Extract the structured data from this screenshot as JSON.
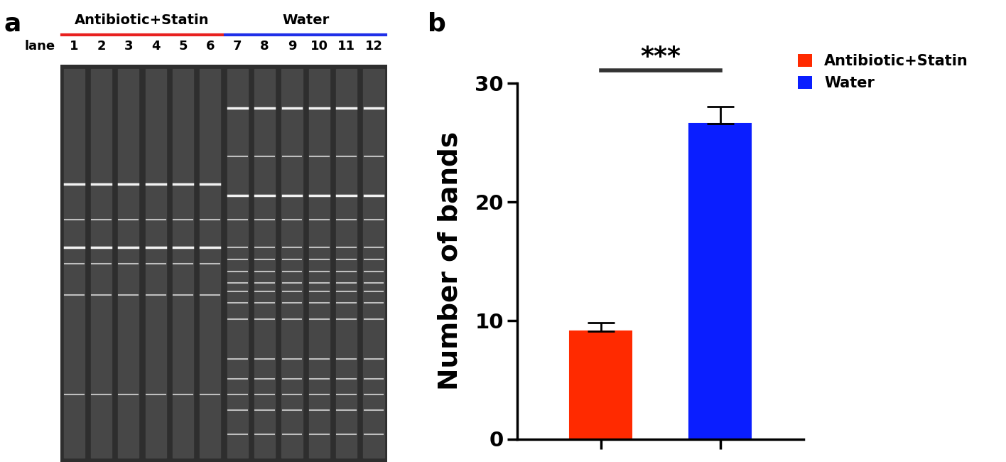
{
  "panel_labels": [
    "a",
    "b"
  ],
  "gel": {
    "axis_label": "lane",
    "groups": [
      {
        "name": "Antibiotic+Statin",
        "color": "#e8211f",
        "lanes": [
          "1",
          "2",
          "3",
          "4",
          "5",
          "6"
        ]
      },
      {
        "name": "Water",
        "color": "#1f2fe8",
        "lanes": [
          "7",
          "8",
          "9",
          "10",
          "11",
          "12"
        ]
      }
    ]
  },
  "chart_data": {
    "type": "bar",
    "categories": [
      null,
      null
    ],
    "series": [
      {
        "name": "Antibiotic+Statin",
        "color": "#ff2a00",
        "values": [
          9.1,
          null
        ],
        "errors": [
          0.7,
          null
        ]
      },
      {
        "name": "Water",
        "color": "#0a1eff",
        "values": [
          null,
          26.6
        ],
        "errors": [
          null,
          1.4
        ]
      }
    ],
    "y_label": "Number of bands",
    "annotations": [
      "***"
    ],
    "ylim": [
      0,
      30
    ],
    "yticks": [
      0,
      10,
      20,
      30
    ],
    "legend": "upper right",
    "tick_labels": "y",
    "grid": false
  }
}
